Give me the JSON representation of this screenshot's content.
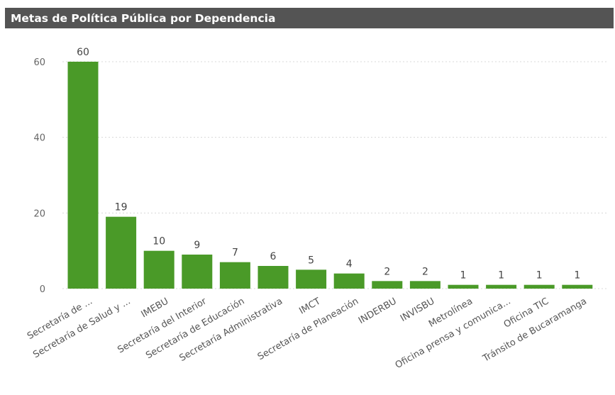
{
  "header": {
    "title": "Metas de Política Pública por Dependencia"
  },
  "colors": {
    "bar": "#4a9a28",
    "title_bg": "#545454",
    "gridline": "#d8d8d8"
  },
  "chart_data": {
    "type": "bar",
    "title": "Metas de Política Pública por Dependencia",
    "xlabel": "",
    "ylabel": "",
    "ylim": [
      0,
      60
    ],
    "yticks": [
      0,
      20,
      40,
      60
    ],
    "grid": true,
    "categories": [
      "Secretaría de ...",
      "Secretaría de Salud y ...",
      "IMEBU",
      "Secretaría del Interior",
      "Secretaría de Educación",
      "Secretaría Administrativa",
      "IMCT",
      "Secretaría de Planeación",
      "INDERBU",
      "INVISBU",
      "Metrolínea",
      "Oficina prensa y comunica...",
      "Oficina TIC",
      "Tránsito de Bucaramanga"
    ],
    "values": [
      60,
      19,
      10,
      9,
      7,
      6,
      5,
      4,
      2,
      2,
      1,
      1,
      1,
      1
    ]
  }
}
